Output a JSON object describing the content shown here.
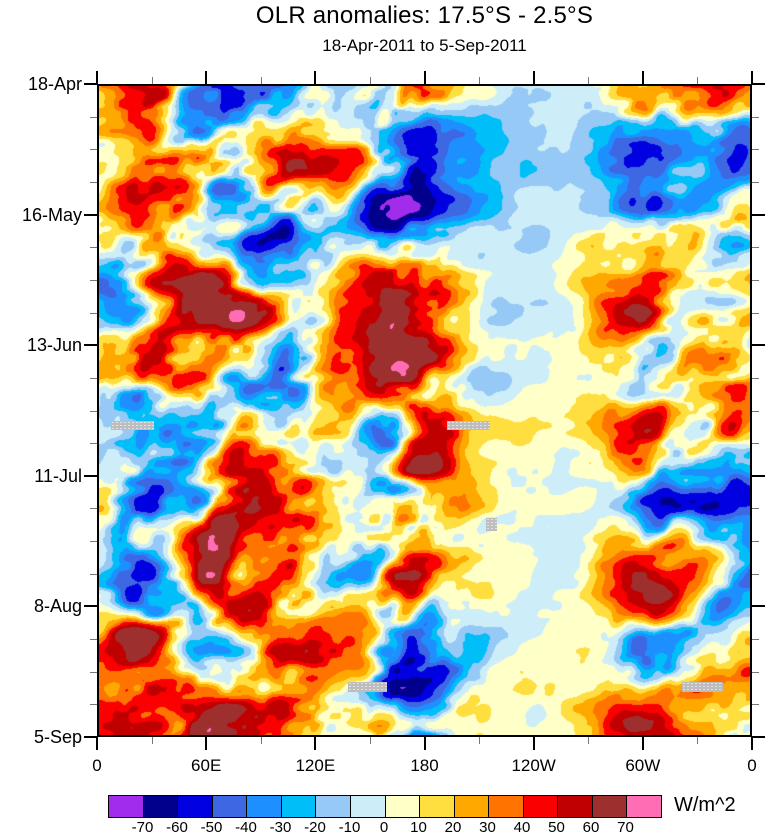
{
  "title": "OLR anomalies: 17.5°S - 2.5°S",
  "subtitle": "18-Apr-2011 to 5-Sep-2011",
  "chart_data": {
    "type": "heatmap",
    "title": "OLR anomalies: 17.5°S - 2.5°S",
    "subtitle": "18-Apr-2011 to 5-Sep-2011",
    "x_axis": {
      "tick_labels": [
        "0",
        "60E",
        "120E",
        "180",
        "120W",
        "60W",
        "0"
      ],
      "minor_ticks_per_interval": 1,
      "range_degrees_east": [
        0,
        360
      ]
    },
    "y_axis": {
      "tick_labels": [
        "18-Apr",
        "16-May",
        "13-Jun",
        "11-Jul",
        "8-Aug",
        "5-Sep"
      ],
      "minor_ticks_per_interval": 3,
      "major_interval_days": 28,
      "total_days": 140,
      "direction": "time increases downward"
    },
    "colorbar": {
      "unit": "W/m^2",
      "levels": [
        -70,
        -60,
        -50,
        -40,
        -30,
        -20,
        -10,
        0,
        10,
        20,
        30,
        40,
        50,
        60,
        70
      ],
      "colors": [
        "#A12CEB",
        "#00008C",
        "#0000E0",
        "#3E68E3",
        "#1E8FFF",
        "#00BEF8",
        "#96C9F5",
        "#CDEEF9",
        "#FFFFC8",
        "#FFDE40",
        "#FFA800",
        "#FF7300",
        "#FA0000",
        "#C00000",
        "#9E2F2F",
        "#FF6EB4"
      ]
    },
    "missing_data_patches": [
      {
        "x": 0.018,
        "y": 0.516,
        "w": 0.067,
        "h": 0.014
      },
      {
        "x": 0.534,
        "y": 0.516,
        "w": 0.067,
        "h": 0.014
      },
      {
        "x": 0.594,
        "y": 0.665,
        "w": 0.017,
        "h": 0.02
      },
      {
        "x": 0.383,
        "y": 0.919,
        "w": 0.06,
        "h": 0.014
      },
      {
        "x": 0.895,
        "y": 0.919,
        "w": 0.063,
        "h": 0.014
      }
    ],
    "field_model": {
      "comment_zones_active_lon_fraction": [
        0.175,
        0.465,
        0.845
      ],
      "comment_zone_quiet_lon_fraction": 0.675,
      "scale_x": 6.2,
      "scale_y": 9.0,
      "shear": 1.3,
      "octaves": 4,
      "gain": 0.55,
      "norm": 2.6,
      "limiter": [
        76,
        55
      ],
      "amp_base": 20,
      "amp_bumps": [
        [
          0.175,
          0.085,
          34
        ],
        [
          0.3,
          0.055,
          20
        ],
        [
          0.465,
          0.07,
          38
        ],
        [
          0.055,
          0.05,
          22
        ],
        [
          0.845,
          0.055,
          24
        ],
        [
          0.96,
          0.05,
          16
        ],
        [
          0.675,
          0.1,
          -14
        ]
      ],
      "bias_base": 3,
      "bias_bumps": [
        [
          0.175,
          0.1,
          7
        ],
        [
          0.46,
          0.08,
          9
        ],
        [
          0.68,
          0.11,
          -6
        ],
        [
          0.59,
          0.05,
          -3
        ]
      ]
    }
  }
}
